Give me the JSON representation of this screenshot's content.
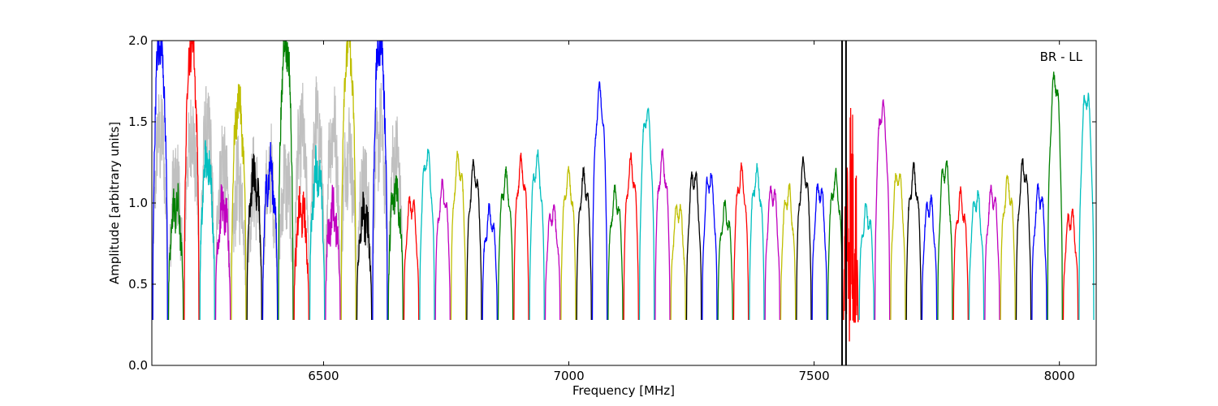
{
  "chart_data": {
    "type": "line",
    "title": "",
    "annotation": "BR - LL",
    "xlabel": "Frequency [MHz]",
    "ylabel": "Amplitude [arbitrary units]",
    "xlim": [
      6150,
      8075
    ],
    "ylim": [
      0.0,
      2.0
    ],
    "xticks": [
      6500,
      7000,
      7500,
      8000
    ],
    "xtick_labels": [
      "6500",
      "7000",
      "7500",
      "8000"
    ],
    "yticks": [
      0.0,
      0.5,
      1.0,
      1.5,
      2.0
    ],
    "ytick_labels": [
      "0.0",
      "0.5",
      "1.0",
      "1.5",
      "2.0"
    ],
    "grid": false,
    "legend": "none",
    "color_cycle": [
      "#0000ff",
      "#008000",
      "#ff0000",
      "#00bfbf",
      "#bf00bf",
      "#bfbf00",
      "#000000"
    ],
    "background_color": "#c0c0c0",
    "channel_width_mhz": 32,
    "channel_start_mhz": 6152,
    "channel_count": 60,
    "typical_channel_profile": {
      "edge_amplitude": 0.28,
      "plateau_range": [
        0.9,
        1.4
      ]
    },
    "notable_features": [
      {
        "x": 6160,
        "y": 2.0,
        "note": "clipped spike"
      },
      {
        "x": 6230,
        "y": 2.0,
        "note": "clipped spike"
      },
      {
        "x": 6330,
        "y": 1.62,
        "note": "peak"
      },
      {
        "x": 6420,
        "y": 2.0,
        "note": "clipped spike"
      },
      {
        "x": 6560,
        "y": 2.0,
        "note": "clipped spike"
      },
      {
        "x": 6610,
        "y": 2.0,
        "note": "clipped spike"
      },
      {
        "x": 7055,
        "y": 1.67,
        "note": "peak"
      },
      {
        "x": 7150,
        "y": 1.55,
        "note": "peak"
      },
      {
        "x": 7565,
        "y": 0.0,
        "note": "strong RFI burst"
      },
      {
        "x": 7650,
        "y": 1.58,
        "note": "peak"
      },
      {
        "x": 7980,
        "y": 1.76,
        "note": "peak"
      },
      {
        "x": 8055,
        "y": 1.66,
        "note": "peak"
      }
    ]
  }
}
